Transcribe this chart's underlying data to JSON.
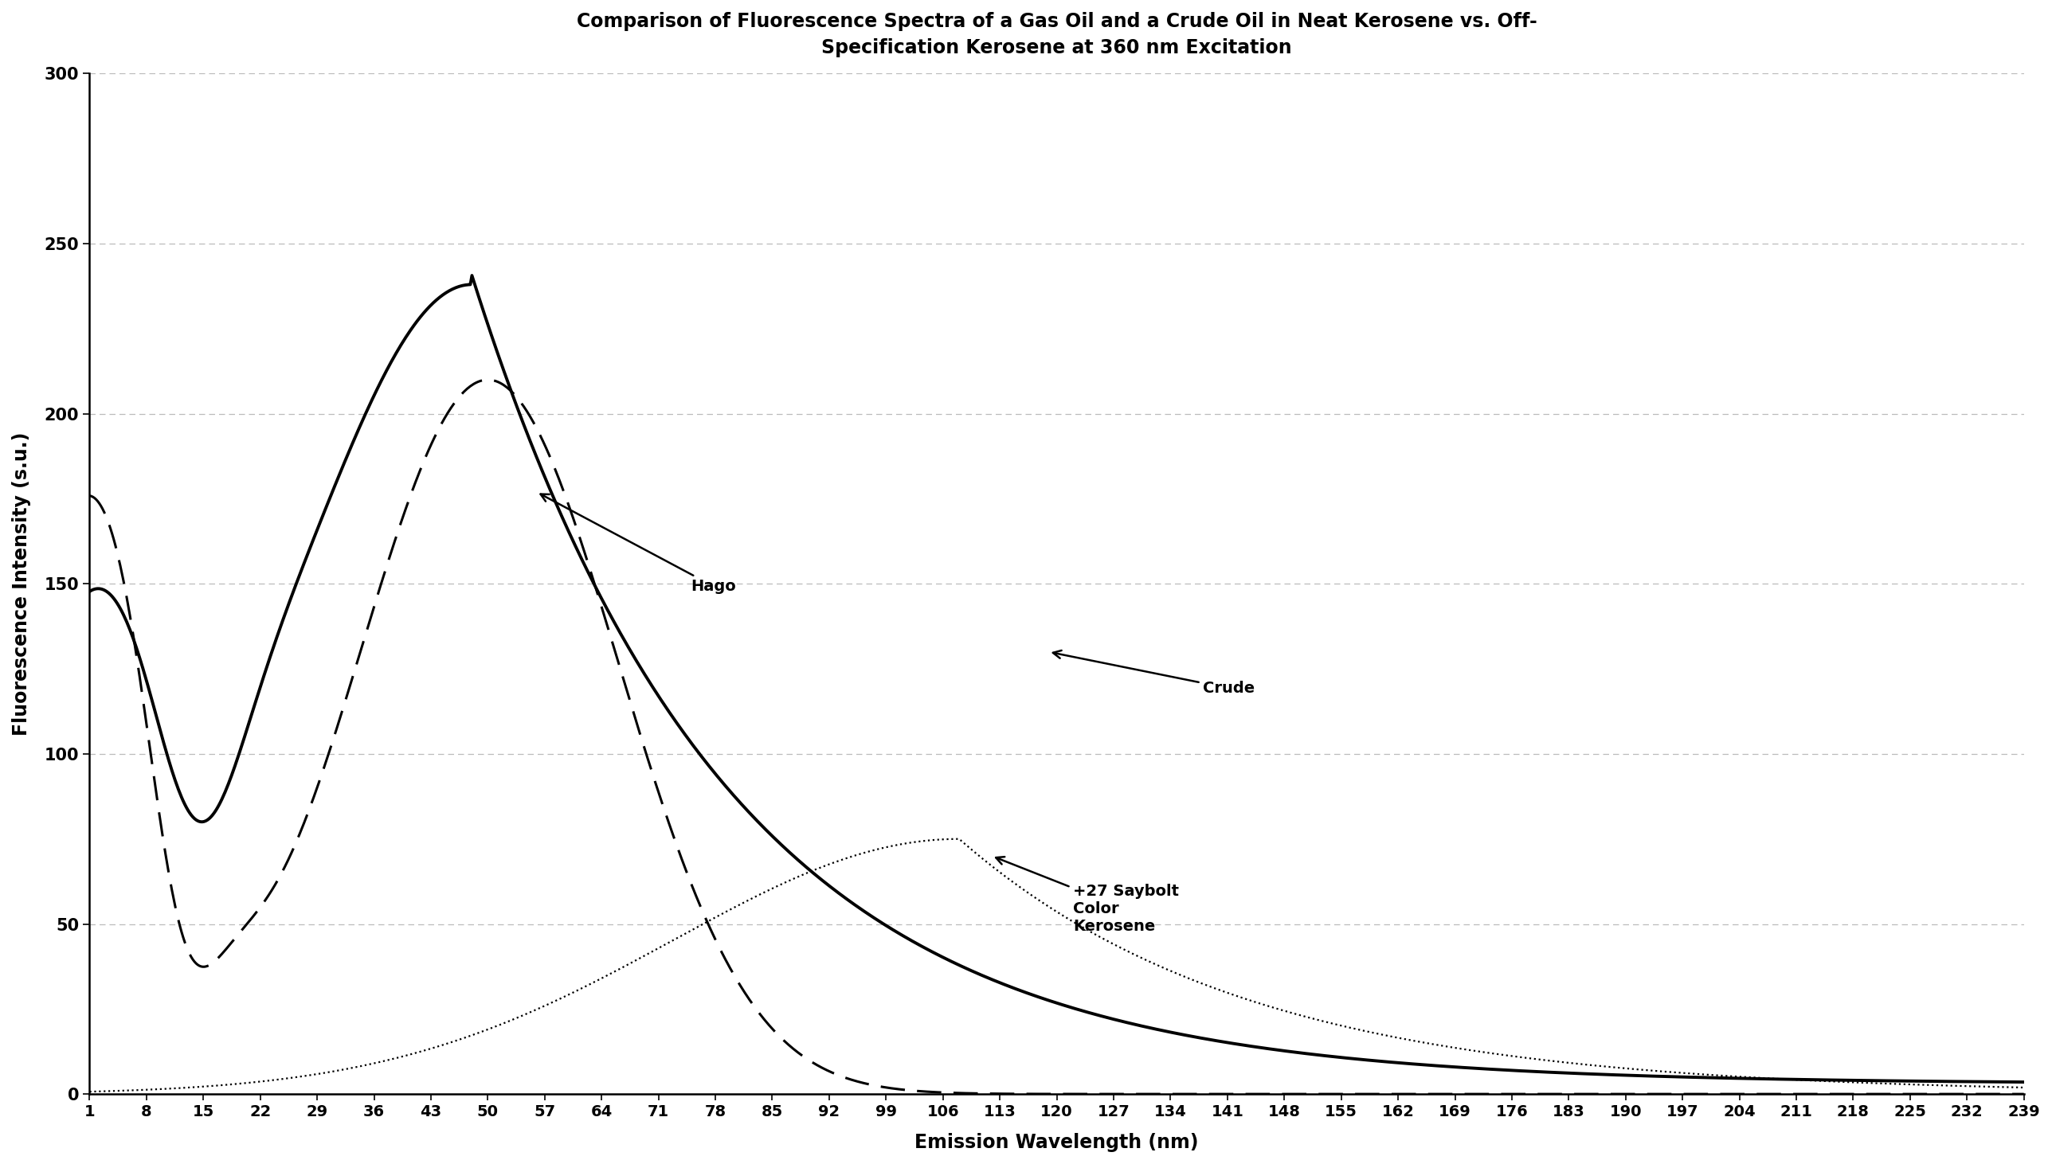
{
  "title": "Comparison of Fluorescence Spectra of a Gas Oil and a Crude Oil in Neat Kerosene vs. Off-\nSpecification Kerosene at 360 nm Excitation",
  "xlabel": "Emission Wavelength (nm)",
  "ylabel": "Fluorescence Intensity (s.u.)",
  "xlim": [
    1,
    239
  ],
  "ylim": [
    0,
    300
  ],
  "yticks": [
    0,
    50,
    100,
    150,
    200,
    250,
    300
  ],
  "xticks": [
    1,
    8,
    15,
    22,
    29,
    36,
    43,
    50,
    57,
    64,
    71,
    78,
    85,
    92,
    99,
    106,
    113,
    120,
    127,
    134,
    141,
    148,
    155,
    162,
    169,
    176,
    183,
    190,
    197,
    204,
    211,
    218,
    225,
    232,
    239
  ],
  "background_color": "#ffffff",
  "grid_color": "#bbbbbb"
}
